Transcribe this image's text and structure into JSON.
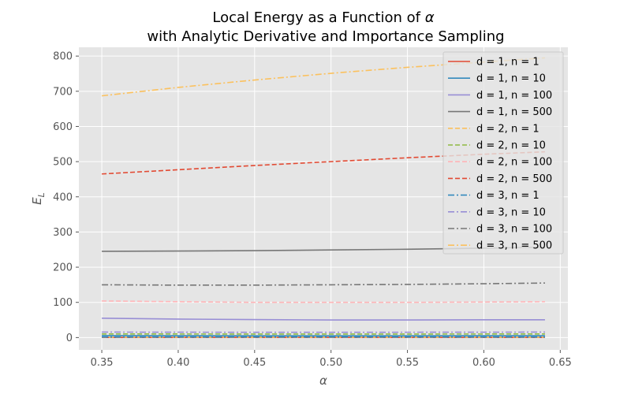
{
  "chart_data": {
    "type": "line",
    "title_line1": "Local Energy as a Function of",
    "title_alpha": "α",
    "title_line2": "with Analytic Derivative and Importance Sampling",
    "xlabel": "α",
    "ylabel_main": "E",
    "ylabel_sub": "L",
    "xlim": [
      0.335,
      0.655
    ],
    "ylim": [
      -35,
      825
    ],
    "xticks": [
      0.35,
      0.4,
      0.45,
      0.5,
      0.55,
      0.6,
      0.65
    ],
    "xtick_labels": [
      "0.35",
      "0.40",
      "0.45",
      "0.50",
      "0.55",
      "0.60",
      "0.65"
    ],
    "yticks": [
      0,
      100,
      200,
      300,
      400,
      500,
      600,
      700,
      800
    ],
    "ytick_labels": [
      "0",
      "100",
      "200",
      "300",
      "400",
      "500",
      "600",
      "700",
      "800"
    ],
    "grid": true,
    "legend_position": "top-right",
    "x": [
      0.35,
      0.4,
      0.45,
      0.5,
      0.55,
      0.6,
      0.64
    ],
    "series": [
      {
        "name": "d = 1, n = 1",
        "color": "#E24A33",
        "dash": "solid",
        "values": [
          0.5,
          0.5,
          0.5,
          0.5,
          0.5,
          0.5,
          0.5
        ]
      },
      {
        "name": "d = 1, n = 10",
        "color": "#348ABD",
        "dash": "solid",
        "values": [
          5.5,
          5.2,
          5.0,
          5.0,
          5.0,
          5.1,
          5.1
        ]
      },
      {
        "name": "d = 1, n = 100",
        "color": "#988ED5",
        "dash": "solid",
        "values": [
          55,
          52.5,
          51,
          50,
          50,
          50.5,
          50.5
        ]
      },
      {
        "name": "d = 1, n = 500",
        "color": "#777777",
        "dash": "solid",
        "values": [
          245,
          246,
          247,
          249,
          251,
          254,
          257
        ]
      },
      {
        "name": "d = 2, n = 1",
        "color": "#FBC15E",
        "dash": "dashed",
        "values": [
          1.0,
          1.0,
          1.0,
          1.0,
          1.0,
          1.0,
          1.0
        ]
      },
      {
        "name": "d = 2, n = 10",
        "color": "#8EBA42",
        "dash": "dashed",
        "values": [
          10.3,
          10.1,
          10.0,
          10.0,
          10.0,
          10.1,
          10.2
        ]
      },
      {
        "name": "d = 2, n = 100",
        "color": "#FFB5B8",
        "dash": "dashed",
        "values": [
          104,
          102,
          100,
          100,
          100,
          101,
          102
        ]
      },
      {
        "name": "d = 2, n = 500",
        "color": "#E24A33",
        "dash": "dashed",
        "values": [
          465,
          477,
          489,
          500,
          511,
          521,
          528
        ]
      },
      {
        "name": "d = 3, n = 1",
        "color": "#348ABD",
        "dash": "dashdot",
        "values": [
          1.5,
          1.5,
          1.5,
          1.5,
          1.5,
          1.5,
          1.5
        ]
      },
      {
        "name": "d = 3, n = 10",
        "color": "#988ED5",
        "dash": "dashdot",
        "values": [
          15.5,
          15.2,
          15.0,
          15.0,
          15.1,
          15.3,
          15.5
        ]
      },
      {
        "name": "d = 3, n = 100",
        "color": "#777777",
        "dash": "dashdot",
        "values": [
          150,
          149,
          149,
          150,
          151,
          153,
          155
        ]
      },
      {
        "name": "d = 3, n = 500",
        "color": "#FBC15E",
        "dash": "dashdot",
        "values": [
          687,
          711,
          732,
          751,
          768,
          783,
          795
        ]
      }
    ]
  }
}
